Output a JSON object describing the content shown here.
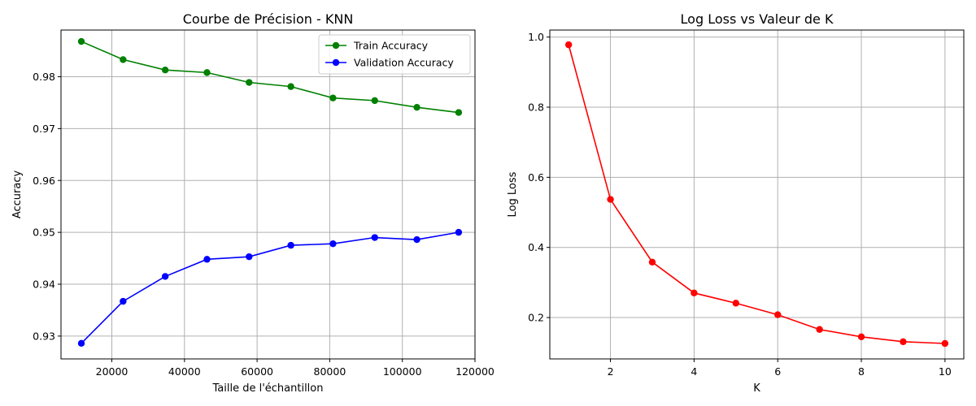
{
  "chart_data": [
    {
      "type": "line",
      "title": "Courbe de Précision - KNN",
      "xlabel": "Taille de l'échantillon",
      "ylabel": "Accuracy",
      "xlim": [
        6000,
        120000
      ],
      "ylim": [
        0.9256,
        0.989
      ],
      "xticks": [
        20000,
        40000,
        60000,
        80000,
        100000,
        120000
      ],
      "xtick_labels": [
        "20000",
        "40000",
        "60000",
        "80000",
        "100000",
        "120000"
      ],
      "yticks": [
        0.93,
        0.94,
        0.95,
        0.96,
        0.97,
        0.98
      ],
      "ytick_labels": [
        "0.93",
        "0.94",
        "0.95",
        "0.96",
        "0.97",
        "0.98"
      ],
      "grid": true,
      "legend": "top-right",
      "x": [
        11600,
        23100,
        34700,
        46200,
        57800,
        69300,
        80900,
        92400,
        104000,
        115500
      ],
      "series": [
        {
          "name": "Train Accuracy",
          "color": "#008000",
          "values": [
            0.9868,
            0.9833,
            0.9813,
            0.9808,
            0.9789,
            0.9781,
            0.9759,
            0.9754,
            0.9741,
            0.9731
          ]
        },
        {
          "name": "Validation Accuracy",
          "color": "#0000ff",
          "values": [
            0.9286,
            0.9367,
            0.9415,
            0.9448,
            0.9453,
            0.9475,
            0.9478,
            0.949,
            0.9486,
            0.95
          ]
        }
      ]
    },
    {
      "type": "line",
      "title": "Log Loss vs Valeur de K",
      "xlabel": "K",
      "ylabel": "Log Loss",
      "xlim": [
        0.55,
        10.45
      ],
      "ylim": [
        0.082,
        1.02
      ],
      "xticks": [
        2,
        4,
        6,
        8,
        10
      ],
      "xtick_labels": [
        "2",
        "4",
        "6",
        "8",
        "10"
      ],
      "yticks": [
        0.2,
        0.4,
        0.6,
        0.8,
        1.0
      ],
      "ytick_labels": [
        "0.2",
        "0.4",
        "0.6",
        "0.8",
        "1.0"
      ],
      "grid": true,
      "x": [
        1,
        2,
        3,
        4,
        5,
        6,
        7,
        8,
        9,
        10
      ],
      "series": [
        {
          "color": "#ff0000",
          "values": [
            0.978,
            0.537,
            0.358,
            0.27,
            0.241,
            0.208,
            0.166,
            0.145,
            0.131,
            0.126
          ]
        }
      ]
    }
  ]
}
